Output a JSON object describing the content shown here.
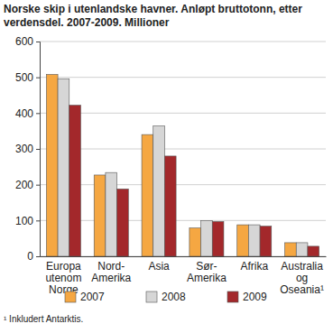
{
  "chart_data": {
    "type": "bar",
    "title": "Norske skip i utenlandske havner. Anløpt bruttotonn, etter verdensdel. 2007-2009. Millioner",
    "categories": [
      "Europa utenom Norge",
      "Nord-Amerika",
      "Asia",
      "Sør-Amerika",
      "Afrika",
      "Australia og Oseania¹"
    ],
    "series": [
      {
        "name": "2007",
        "color": "#f5a742",
        "values": [
          508,
          227,
          340,
          79,
          88,
          38
        ]
      },
      {
        "name": "2008",
        "color": "#d6d6d6",
        "values": [
          496,
          234,
          364,
          100,
          88,
          38
        ]
      },
      {
        "name": "2009",
        "color": "#a3282b",
        "values": [
          422,
          188,
          280,
          97,
          84,
          28
        ]
      }
    ],
    "ylim": [
      0,
      600
    ],
    "yticks": [
      0,
      100,
      200,
      300,
      400,
      500,
      600
    ],
    "grid": true,
    "legend": "bottom",
    "annotations": [
      "¹ Inkludert Antarktis."
    ]
  }
}
